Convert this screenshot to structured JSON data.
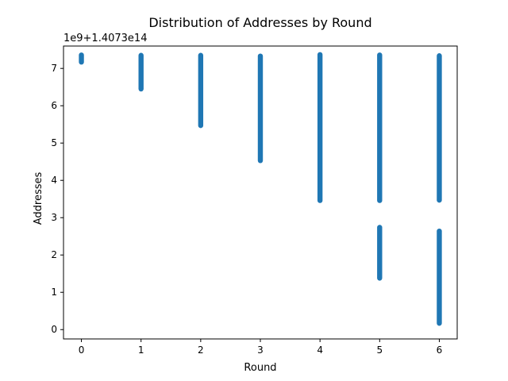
{
  "chart_data": {
    "type": "scatter",
    "title": "Distribution of Addresses by Round",
    "xlabel": "Round",
    "ylabel": "Addresses",
    "offset_label": "1e9+1.4073e14",
    "xlim": [
      -0.3,
      6.3
    ],
    "ylim": [
      -0.25,
      7.6
    ],
    "x_ticks": [
      0,
      1,
      2,
      3,
      4,
      5,
      6
    ],
    "y_ticks": [
      0,
      1,
      2,
      3,
      4,
      5,
      6,
      7
    ],
    "grid": false,
    "marker_color": "#1f77b4",
    "series": [
      {
        "bands": [
          {
            "x": 0,
            "y_min": 7.17,
            "y_max": 7.36
          },
          {
            "x": 1,
            "y_min": 6.45,
            "y_max": 7.35
          },
          {
            "x": 2,
            "y_min": 5.47,
            "y_max": 7.35
          },
          {
            "x": 3,
            "y_min": 4.53,
            "y_max": 7.33
          },
          {
            "x": 4,
            "y_min": 3.46,
            "y_max": 7.37
          },
          {
            "x": 5,
            "y_min": 3.46,
            "y_max": 7.36
          },
          {
            "x": 5,
            "y_min": 1.38,
            "y_max": 2.74
          },
          {
            "x": 6,
            "y_min": 3.47,
            "y_max": 7.34
          },
          {
            "x": 6,
            "y_min": 0.17,
            "y_max": 2.64
          }
        ]
      }
    ]
  }
}
